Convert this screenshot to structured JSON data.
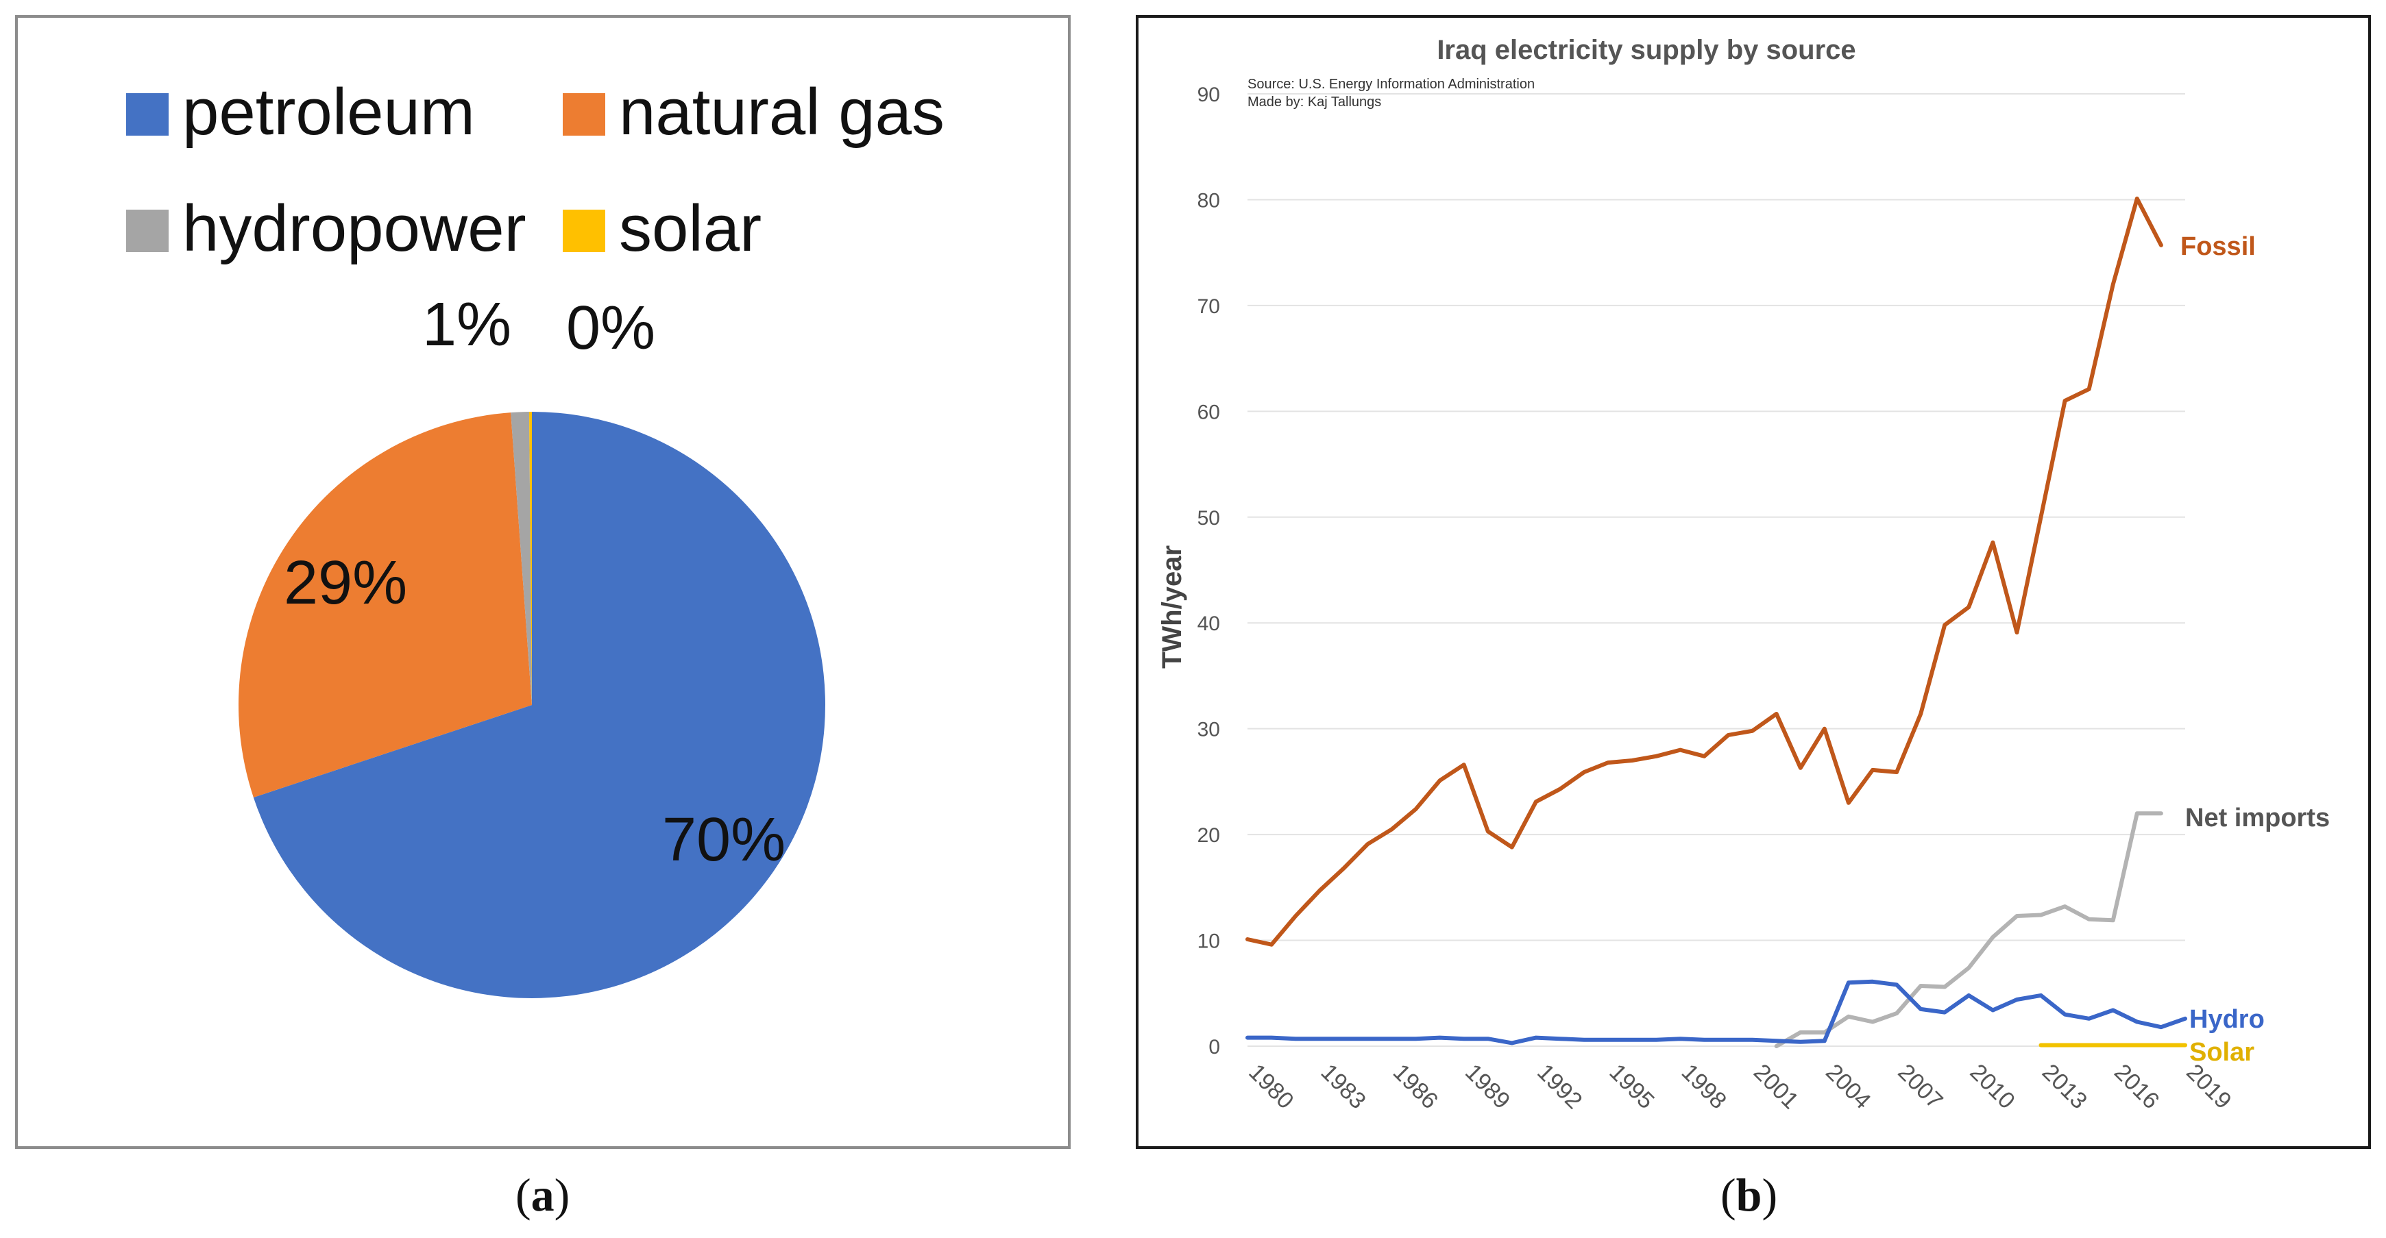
{
  "panels": {
    "a": {
      "caption_open": "(",
      "caption_letter": "a",
      "caption_close": ")"
    },
    "b": {
      "caption_open": "(",
      "caption_letter": "b",
      "caption_close": ")"
    }
  },
  "colors": {
    "petroleum": "#4472c4",
    "natural_gas": "#ed7d31",
    "hydropower": "#a5a5a5",
    "solar": "#ffc000",
    "fossil_line": "#c0571a",
    "imports_line": "#b3b3b3",
    "hydro_line": "#3a66c8",
    "solar_line": "#f2c200"
  },
  "chart_data": [
    {
      "type": "pie",
      "title": "",
      "legend": [
        "petroleum",
        "natural gas",
        "hydropower",
        "solar"
      ],
      "slices": [
        {
          "name": "petroleum",
          "value": 70,
          "label": "70%"
        },
        {
          "name": "natural gas",
          "value": 29,
          "label": "29%"
        },
        {
          "name": "hydropower",
          "value": 1,
          "label": "1%"
        },
        {
          "name": "solar",
          "value": 0.15,
          "label": "0%"
        }
      ]
    },
    {
      "type": "line",
      "title": "Iraq electricity supply by source",
      "source_note": "Source: U.S. Energy Information Administration",
      "made_by": "Made by: Kaj Tallungs",
      "ylabel": "TWh/year",
      "xlabel": "",
      "ylim": [
        0,
        90
      ],
      "yticks": [
        0,
        10,
        20,
        30,
        40,
        50,
        60,
        70,
        80,
        90
      ],
      "xlim": [
        1980,
        2019
      ],
      "xticks": [
        1980,
        1983,
        1986,
        1989,
        1992,
        1995,
        1998,
        2001,
        2004,
        2007,
        2010,
        2013,
        2016,
        2019
      ],
      "grid": true,
      "series": [
        {
          "name": "Fossil",
          "key": "fossil_line",
          "x": [
            1980,
            1981,
            1982,
            1983,
            1984,
            1985,
            1986,
            1987,
            1988,
            1989,
            1990,
            1991,
            1992,
            1993,
            1994,
            1995,
            1996,
            1997,
            1998,
            1999,
            2000,
            2001,
            2002,
            2003,
            2004,
            2005,
            2006,
            2007,
            2008,
            2009,
            2010,
            2011,
            2012,
            2013,
            2014,
            2015,
            2016,
            2017,
            2018
          ],
          "values": [
            10.1,
            9.6,
            12.3,
            14.7,
            16.8,
            19.1,
            20.5,
            22.4,
            25.1,
            26.6,
            20.3,
            18.8,
            23.1,
            24.3,
            25.9,
            26.8,
            27.0,
            27.4,
            28.0,
            27.4,
            29.4,
            29.8,
            31.4,
            26.3,
            30.0,
            23.0,
            26.1,
            25.9,
            31.4,
            39.8,
            41.5,
            47.6,
            39.1,
            50.0,
            61.0,
            62.1,
            72.0,
            80.1,
            75.7
          ]
        },
        {
          "name": "Net imports",
          "key": "imports_line",
          "x": [
            2002,
            2003,
            2004,
            2005,
            2006,
            2007,
            2008,
            2009,
            2010,
            2011,
            2012,
            2013,
            2014,
            2015,
            2016,
            2017,
            2018
          ],
          "values": [
            0,
            1.3,
            1.3,
            2.8,
            2.3,
            3.1,
            5.7,
            5.6,
            7.4,
            10.3,
            12.3,
            12.4,
            13.2,
            12.0,
            11.9,
            22.0,
            22.0
          ]
        },
        {
          "name": "Hydro",
          "key": "hydro_line",
          "x": [
            1980,
            1981,
            1982,
            1983,
            1984,
            1985,
            1986,
            1987,
            1988,
            1989,
            1990,
            1991,
            1992,
            1993,
            1994,
            1995,
            1996,
            1997,
            1998,
            1999,
            2000,
            2001,
            2002,
            2003,
            2004,
            2005,
            2006,
            2007,
            2008,
            2009,
            2010,
            2011,
            2012,
            2013,
            2014,
            2015,
            2016,
            2017,
            2018,
            2019
          ],
          "values": [
            0.8,
            0.8,
            0.7,
            0.7,
            0.7,
            0.7,
            0.7,
            0.7,
            0.8,
            0.7,
            0.7,
            0.3,
            0.8,
            0.7,
            0.6,
            0.6,
            0.6,
            0.6,
            0.7,
            0.6,
            0.6,
            0.6,
            0.5,
            0.4,
            0.5,
            6.0,
            6.1,
            5.8,
            3.5,
            3.2,
            4.8,
            3.4,
            4.4,
            4.8,
            3.0,
            2.6,
            3.4,
            2.3,
            1.8,
            2.6
          ]
        },
        {
          "name": "Solar",
          "key": "solar_line",
          "x": [
            2013,
            2014,
            2015,
            2016,
            2017,
            2018,
            2019
          ],
          "values": [
            0.1,
            0.1,
            0.1,
            0.1,
            0.1,
            0.1,
            0.1
          ]
        }
      ]
    }
  ]
}
